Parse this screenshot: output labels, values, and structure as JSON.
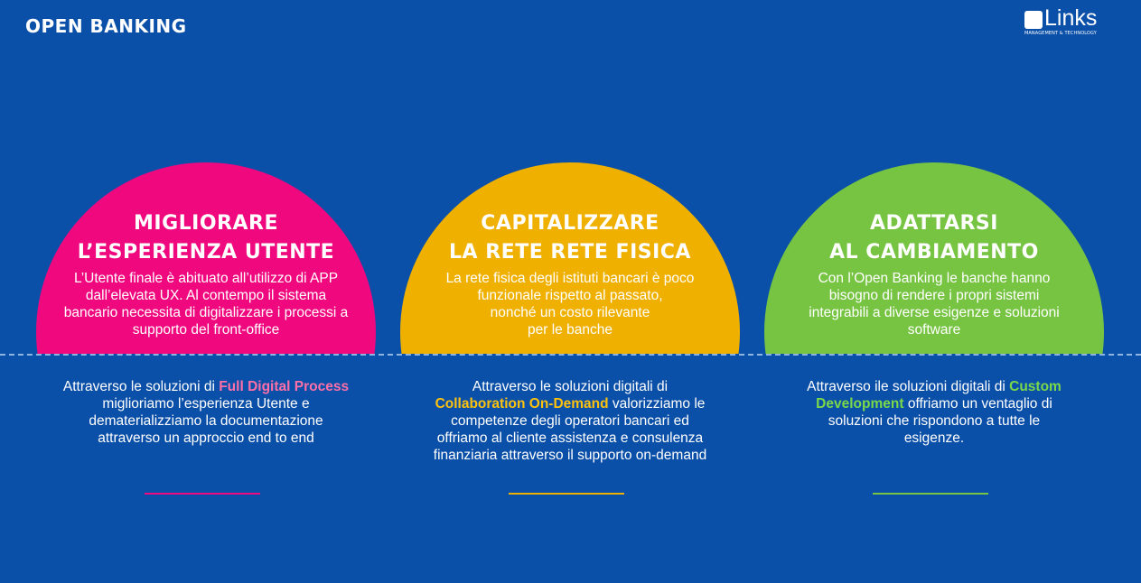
{
  "header": {
    "title": "OPEN BANKING"
  },
  "logo": {
    "name": "Links",
    "tagline": "MANAGEMENT & TECHNOLOGY"
  },
  "columns": [
    {
      "color": "#f0087f",
      "highlight_color": "#ff6fa8",
      "heading": "MIGLIORARE\nL’ESPERIENZA UTENTE",
      "description": "L’Utente finale è abituato all’utilizzo di APP\ndall’elevata UX. Al contempo il sistema\nbancario necessita di digitalizzare i processi a\nsupporto del front-office",
      "bottom_pre": "Attraverso le soluzioni di ",
      "bottom_highlight": "Full Digital Process",
      "bottom_post": "\nmiglioriamo l’esperienza Utente e\ndematerializziamo la documentazione\nattraverso un approccio end to end"
    },
    {
      "color": "#f0b000",
      "highlight_color": "#ffc20e",
      "heading": "CAPITALIZZARE\nLA RETE RETE FISICA",
      "description": "La rete fisica degli istituti bancari è poco\nfunzionale rispetto al passato,\nnonché un costo rilevante\nper le banche",
      "bottom_pre": "Attraverso le soluzioni digitali di\n",
      "bottom_highlight": "Collaboration On-Demand",
      "bottom_post": " valorizziamo le\ncompetenze degli operatori bancari ed\noffriamo al cliente assistenza e consulenza\nfinanziaria attraverso il supporto on-demand"
    },
    {
      "color": "#76c442",
      "highlight_color": "#7bd84a",
      "heading": "ADATTARSI\nAL CAMBIAMENTO",
      "description": "Con l’Open Banking le banche hanno\nbisogno di rendere i propri sistemi\nintegrabili a diverse esigenze e soluzioni\nsoftware",
      "bottom_pre": "Attraverso ile soluzioni digitali di ",
      "bottom_highlight": "Custom\nDevelopment",
      "bottom_post": " offriamo un ventaglio di\nsoluzioni che rispondono a tutte le\nesigenze."
    }
  ]
}
